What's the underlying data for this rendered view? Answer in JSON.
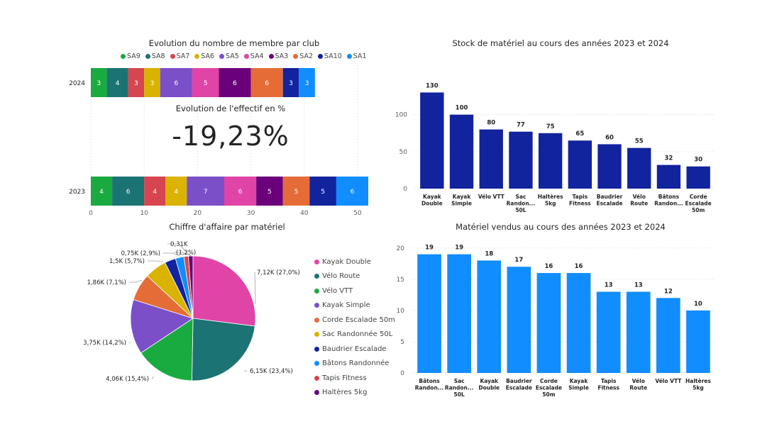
{
  "chart_data": [
    {
      "type": "bar",
      "orientation": "horizontal-stacked",
      "title": "Evolution du nombre de membre par club",
      "categories": [
        "2024",
        "2023"
      ],
      "series": [
        {
          "name": "SA9",
          "color": "#1AAB40",
          "values": [
            3,
            4
          ]
        },
        {
          "name": "SA8",
          "color": "#1C7373",
          "values": [
            4,
            6
          ]
        },
        {
          "name": "SA7",
          "color": "#D64550",
          "values": [
            3,
            4
          ]
        },
        {
          "name": "SA6",
          "color": "#D9B300",
          "values": [
            3,
            4
          ]
        },
        {
          "name": "SA5",
          "color": "#7B4FC8",
          "values": [
            6,
            7
          ]
        },
        {
          "name": "SA4",
          "color": "#E044A7",
          "values": [
            5,
            6
          ]
        },
        {
          "name": "SA3",
          "color": "#6B007B",
          "values": [
            6,
            5
          ]
        },
        {
          "name": "SA2",
          "color": "#E66C37",
          "values": [
            6,
            5
          ]
        },
        {
          "name": "SA10",
          "color": "#12239E",
          "values": [
            3,
            5
          ]
        },
        {
          "name": "SA1",
          "color": "#118DFF",
          "values": [
            3,
            6
          ]
        }
      ],
      "xlim": [
        0,
        52
      ],
      "xticks": [
        "0",
        "10",
        "20",
        "30",
        "40",
        "50"
      ],
      "legend": "top"
    },
    {
      "type": "bar",
      "title": "Stock de matériel au cours des années 2023 et 2024",
      "categories": [
        [
          "Kayak",
          "Double"
        ],
        [
          "Kayak",
          "Simple"
        ],
        [
          "Vélo VTT"
        ],
        [
          "Sac",
          "Randon...",
          "50L"
        ],
        [
          "Haltères",
          "5kg"
        ],
        [
          "Tapis",
          "Fitness"
        ],
        [
          "Baudrier",
          "Escalade"
        ],
        [
          "Vélo",
          "Route"
        ],
        [
          "Bâtons",
          "Randon..."
        ],
        [
          "Corde",
          "Escalade",
          "50m"
        ]
      ],
      "values": [
        130,
        100,
        80,
        77,
        75,
        65,
        60,
        55,
        32,
        30
      ],
      "color": "#12239E",
      "ylim": [
        0,
        140
      ],
      "yticks": [
        "0",
        "50",
        "100"
      ]
    },
    {
      "type": "pie",
      "title": "Chiffre d'affaire par matériel",
      "slices": [
        {
          "name": "Kayak Double",
          "value": 7.12,
          "label": "7,12K (27,0%)",
          "color": "#E044A7"
        },
        {
          "name": "Vélo Route",
          "value": 6.15,
          "label": "6,15K (23,4%)",
          "color": "#1C7373"
        },
        {
          "name": "Vélo VTT",
          "value": 4.06,
          "label": "4,06K (15,4%)",
          "color": "#1AAB40"
        },
        {
          "name": "Kayak Simple",
          "value": 3.75,
          "label": "3,75K (14,2%)",
          "color": "#7B4FC8"
        },
        {
          "name": "Corde Escalade 50m",
          "value": 1.86,
          "label": "1,86K (7,1%)",
          "color": "#E66C37"
        },
        {
          "name": "Sac Randonnée 50L",
          "value": 1.5,
          "label": "1,5K (5,7%)",
          "color": "#D9B300"
        },
        {
          "name": "Baudrier Escalade",
          "value": 0.75,
          "label": "0,75K (2,9%)",
          "color": "#12239E"
        },
        {
          "name": "Bâtons Randonnée",
          "value": 0.58,
          "label": "",
          "color": "#118DFF"
        },
        {
          "name": "Tapis Fitness",
          "value": 0.31,
          "label": "0,31K",
          "color": "#D64550"
        },
        {
          "name": "Haltères 5kg",
          "value": 0.31,
          "label": "(1,2%)",
          "color": "#6B007B"
        }
      ],
      "legend": "right"
    },
    {
      "type": "bar",
      "title": "Matériel vendus au cours des années 2023 et 2024",
      "categories": [
        [
          "Bâtons",
          "Randon..."
        ],
        [
          "Sac",
          "Randon...",
          "50L"
        ],
        [
          "Kayak",
          "Double"
        ],
        [
          "Baudrier",
          "Escalade"
        ],
        [
          "Corde",
          "Escalade",
          "50m"
        ],
        [
          "Kayak",
          "Simple"
        ],
        [
          "Tapis",
          "Fitness"
        ],
        [
          "Vélo",
          "Route"
        ],
        [
          "Vélo VTT"
        ],
        [
          "Haltères",
          "5kg"
        ]
      ],
      "values": [
        19,
        19,
        18,
        17,
        16,
        16,
        13,
        13,
        12,
        10
      ],
      "color": "#118DFF",
      "ylim": [
        0,
        21
      ],
      "yticks": [
        "0",
        "5",
        "10",
        "15",
        "20"
      ]
    }
  ],
  "kpi": {
    "title": "Evolution de l'effectif en %",
    "value": "-19,23%"
  }
}
